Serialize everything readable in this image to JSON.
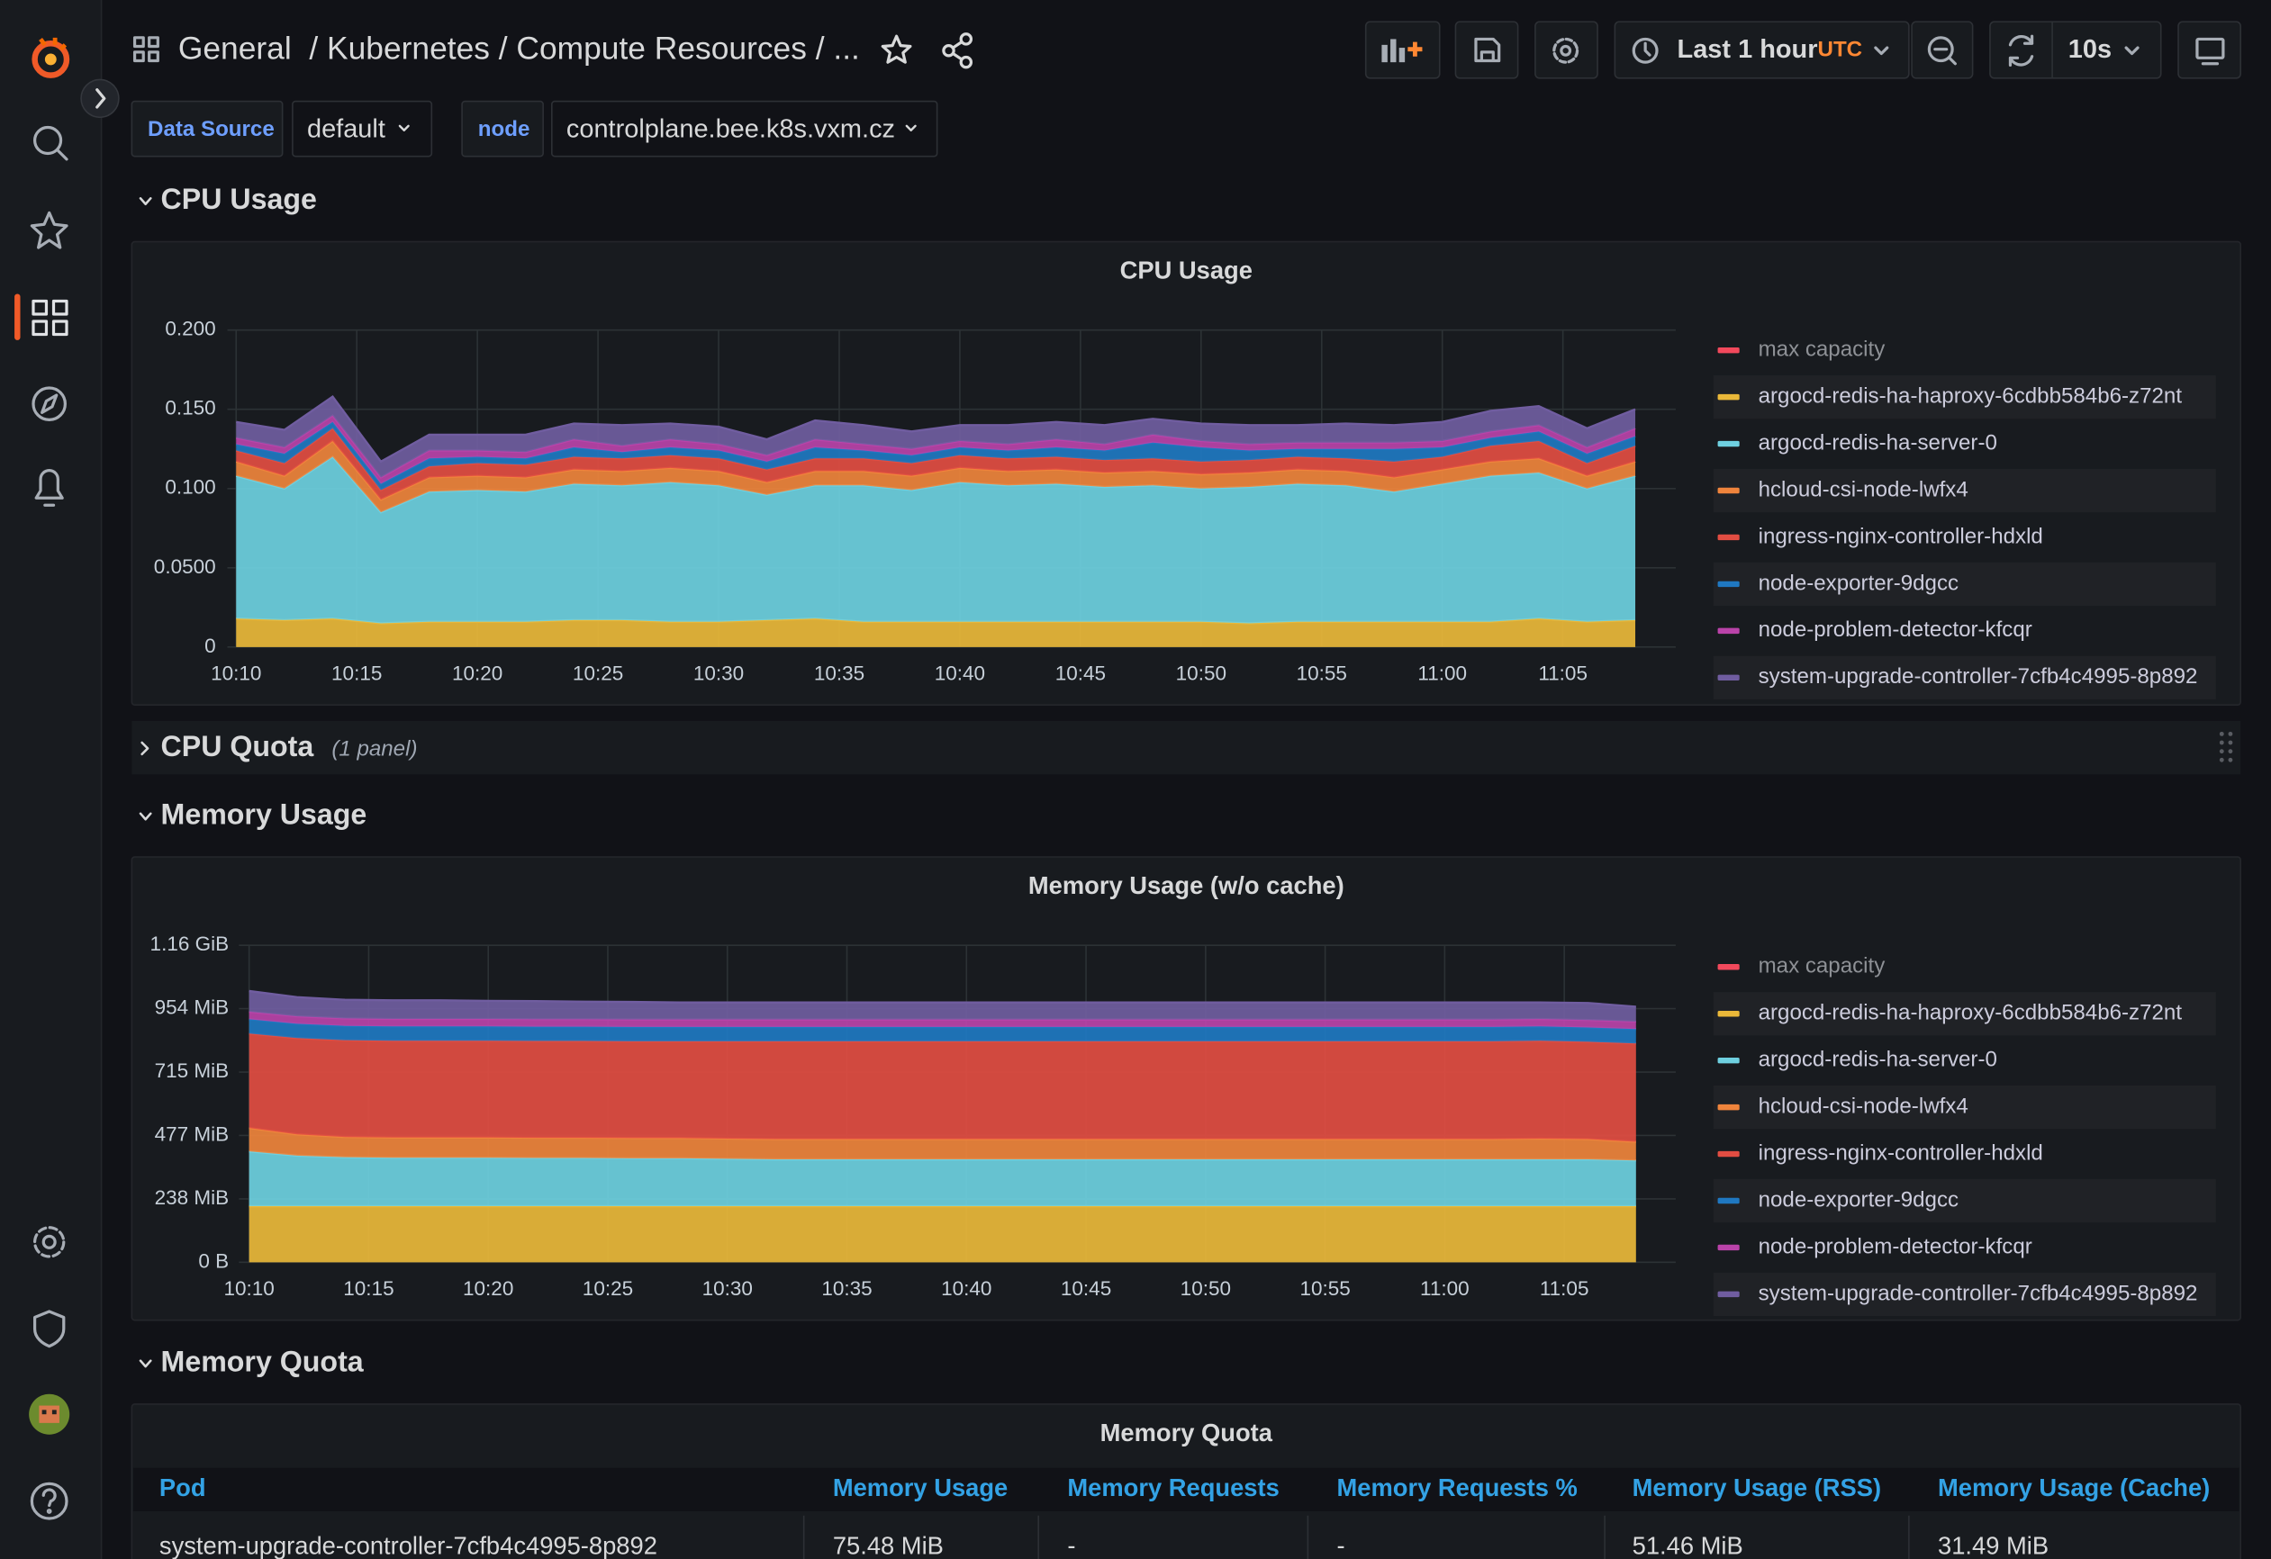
{
  "header": {
    "breadcrumb": "General  / Kubernetes / Compute Resources / ...",
    "time_range": "Last 1 hour",
    "timezone": "UTC",
    "refresh": "10s"
  },
  "variables": [
    {
      "label": "Data Source",
      "value": "default"
    },
    {
      "label": "node",
      "value": "controlplane.bee.k8s.vxm.cz"
    }
  ],
  "rows": [
    {
      "title": "CPU Usage"
    },
    {
      "title": "CPU Quota",
      "note": "(1 panel)"
    },
    {
      "title": "Memory Usage"
    },
    {
      "title": "Memory Quota"
    }
  ],
  "chart_data": [
    {
      "type": "stacked-area",
      "title": "CPU Usage",
      "x": [
        "10:10",
        "10:12",
        "10:14",
        "10:16",
        "10:18",
        "10:20",
        "10:22",
        "10:24",
        "10:26",
        "10:28",
        "10:30",
        "10:32",
        "10:34",
        "10:36",
        "10:38",
        "10:40",
        "10:42",
        "10:44",
        "10:46",
        "10:48",
        "10:50",
        "10:52",
        "10:54",
        "10:56",
        "10:58",
        "11:00",
        "11:02",
        "11:04",
        "11:06",
        "11:08"
      ],
      "xlim": [
        "10:09",
        "11:10"
      ],
      "xticks": [
        "10:10",
        "10:15",
        "10:20",
        "10:25",
        "10:30",
        "10:35",
        "10:40",
        "10:45",
        "10:50",
        "10:55",
        "11:00",
        "11:05"
      ],
      "ylim": [
        0,
        0.2
      ],
      "yticks": [
        0,
        {
          "value": 0.05,
          "label": "0.0500"
        },
        {
          "value": 0.1,
          "label": "0.100"
        },
        {
          "value": 0.15,
          "label": "0.150"
        },
        {
          "value": 0.2,
          "label": "0.200"
        }
      ],
      "grid": true,
      "legend": "right",
      "series": [
        {
          "name": "max capacity",
          "color": "#f2495c",
          "values": [
            null,
            null,
            null,
            null,
            null,
            null,
            null,
            null,
            null,
            null,
            null,
            null,
            null,
            null,
            null,
            null,
            null,
            null,
            null,
            null,
            null,
            null,
            null,
            null,
            null,
            null,
            null,
            null,
            null,
            null
          ]
        },
        {
          "name": "argocd-redis-ha-haproxy-6cdbb584b6-z72nt",
          "color": "#eab839",
          "values": [
            0.018,
            0.017,
            0.018,
            0.015,
            0.016,
            0.016,
            0.016,
            0.017,
            0.017,
            0.016,
            0.016,
            0.017,
            0.018,
            0.016,
            0.016,
            0.016,
            0.016,
            0.016,
            0.016,
            0.016,
            0.016,
            0.015,
            0.016,
            0.016,
            0.016,
            0.016,
            0.016,
            0.018,
            0.016,
            0.017
          ]
        },
        {
          "name": "argocd-redis-ha-server-0",
          "color": "#6ed0e0",
          "values": [
            0.09,
            0.083,
            0.102,
            0.07,
            0.082,
            0.083,
            0.082,
            0.086,
            0.085,
            0.088,
            0.086,
            0.079,
            0.084,
            0.086,
            0.083,
            0.088,
            0.086,
            0.087,
            0.085,
            0.086,
            0.084,
            0.086,
            0.087,
            0.086,
            0.082,
            0.087,
            0.092,
            0.092,
            0.084,
            0.091
          ]
        },
        {
          "name": "hcloud-csi-node-lwfx4",
          "color": "#ef843c",
          "values": [
            0.009,
            0.008,
            0.01,
            0.008,
            0.009,
            0.009,
            0.009,
            0.009,
            0.009,
            0.009,
            0.009,
            0.008,
            0.009,
            0.009,
            0.009,
            0.009,
            0.009,
            0.009,
            0.009,
            0.009,
            0.009,
            0.009,
            0.009,
            0.009,
            0.009,
            0.009,
            0.009,
            0.009,
            0.008,
            0.009
          ]
        },
        {
          "name": "ingress-nginx-controller-hdxld",
          "color": "#e24d42",
          "values": [
            0.007,
            0.008,
            0.008,
            0.006,
            0.007,
            0.008,
            0.008,
            0.008,
            0.008,
            0.008,
            0.008,
            0.008,
            0.008,
            0.008,
            0.008,
            0.008,
            0.008,
            0.008,
            0.008,
            0.008,
            0.008,
            0.008,
            0.008,
            0.008,
            0.01,
            0.008,
            0.01,
            0.011,
            0.008,
            0.01
          ]
        },
        {
          "name": "node-exporter-9dgcc",
          "color": "#1f78c1",
          "values": [
            0.004,
            0.006,
            0.004,
            0.004,
            0.005,
            0.004,
            0.004,
            0.006,
            0.004,
            0.005,
            0.005,
            0.005,
            0.007,
            0.005,
            0.005,
            0.005,
            0.005,
            0.006,
            0.006,
            0.01,
            0.009,
            0.006,
            0.005,
            0.006,
            0.008,
            0.006,
            0.005,
            0.006,
            0.006,
            0.006
          ]
        },
        {
          "name": "node-problem-detector-kfcqr",
          "color": "#ba43a9",
          "values": [
            0.004,
            0.004,
            0.004,
            0.004,
            0.005,
            0.004,
            0.004,
            0.005,
            0.004,
            0.005,
            0.004,
            0.004,
            0.005,
            0.004,
            0.004,
            0.004,
            0.004,
            0.005,
            0.004,
            0.005,
            0.004,
            0.004,
            0.004,
            0.004,
            0.004,
            0.004,
            0.004,
            0.004,
            0.004,
            0.005
          ]
        },
        {
          "name": "system-upgrade-controller-7cfb4c4995-8p892",
          "color": "#705da0",
          "values": [
            0.01,
            0.011,
            0.012,
            0.01,
            0.01,
            0.01,
            0.011,
            0.01,
            0.013,
            0.01,
            0.011,
            0.01,
            0.012,
            0.012,
            0.011,
            0.01,
            0.012,
            0.011,
            0.012,
            0.01,
            0.011,
            0.012,
            0.011,
            0.012,
            0.011,
            0.012,
            0.013,
            0.012,
            0.012,
            0.012
          ]
        }
      ]
    },
    {
      "type": "stacked-area",
      "title": "Memory Usage (w/o cache)",
      "x": [
        "10:10",
        "10:12",
        "10:14",
        "10:16",
        "10:18",
        "10:20",
        "10:22",
        "10:24",
        "10:26",
        "10:28",
        "10:30",
        "10:32",
        "10:34",
        "10:36",
        "10:38",
        "10:40",
        "10:42",
        "10:44",
        "10:46",
        "10:48",
        "10:50",
        "10:52",
        "10:54",
        "10:56",
        "10:58",
        "11:00",
        "11:02",
        "11:04",
        "11:06",
        "11:08"
      ],
      "xlim": [
        "10:09",
        "11:10"
      ],
      "xticks": [
        "10:10",
        "10:15",
        "10:20",
        "10:25",
        "10:30",
        "10:35",
        "10:40",
        "10:45",
        "10:50",
        "10:55",
        "11:00",
        "11:05"
      ],
      "ylim": [
        0,
        1192.1
      ],
      "yticks": [
        {
          "value": 0,
          "label": "0 B"
        },
        {
          "value": 238.4,
          "label": "238 MiB"
        },
        {
          "value": 476.8,
          "label": "477 MiB"
        },
        {
          "value": 715.3,
          "label": "715 MiB"
        },
        {
          "value": 953.7,
          "label": "954 MiB"
        },
        {
          "value": 1192.1,
          "label": "1.16 GiB"
        }
      ],
      "grid": true,
      "legend": "right",
      "series": [
        {
          "name": "max capacity",
          "color": "#f2495c",
          "values": [
            null,
            null,
            null,
            null,
            null,
            null,
            null,
            null,
            null,
            null,
            null,
            null,
            null,
            null,
            null,
            null,
            null,
            null,
            null,
            null,
            null,
            null,
            null,
            null,
            null,
            null,
            null,
            null,
            null,
            null
          ]
        },
        {
          "name": "argocd-redis-ha-haproxy-6cdbb584b6-z72nt",
          "color": "#eab839",
          "values": [
            211,
            211,
            211,
            211,
            211,
            211,
            211,
            211,
            211,
            211,
            211,
            211,
            211,
            211,
            211,
            211,
            211,
            211,
            211,
            211,
            211,
            211,
            211,
            211,
            211,
            211,
            211,
            211,
            211,
            211
          ]
        },
        {
          "name": "argocd-redis-ha-server-0",
          "color": "#6ed0e0",
          "values": [
            206,
            190,
            184,
            182,
            182,
            182,
            181,
            181,
            180,
            180,
            178,
            176,
            176,
            176,
            176,
            176,
            176,
            176,
            176,
            176,
            176,
            176,
            176,
            176,
            176,
            176,
            176,
            176,
            176,
            172
          ]
        },
        {
          "name": "hcloud-csi-node-lwfx4",
          "color": "#ef843c",
          "values": [
            88,
            80,
            76,
            76,
            76,
            76,
            76,
            76,
            76,
            76,
            76,
            76,
            76,
            76,
            76,
            76,
            76,
            76,
            76,
            76,
            76,
            76,
            76,
            76,
            76,
            76,
            76,
            78,
            76,
            70
          ]
        },
        {
          "name": "ingress-nginx-controller-hdxld",
          "color": "#e24d42",
          "values": [
            355,
            362,
            364,
            364,
            364,
            364,
            364,
            364,
            364,
            364,
            366,
            368,
            368,
            368,
            368,
            368,
            368,
            368,
            368,
            368,
            368,
            368,
            368,
            368,
            368,
            368,
            368,
            368,
            366,
            370
          ]
        },
        {
          "name": "node-exporter-9dgcc",
          "color": "#1f78c1",
          "values": [
            54,
            54,
            54,
            54,
            54,
            54,
            54,
            54,
            54,
            54,
            54,
            54,
            54,
            54,
            54,
            54,
            54,
            54,
            54,
            54,
            54,
            54,
            54,
            54,
            54,
            54,
            54,
            54,
            54,
            54
          ]
        },
        {
          "name": "node-problem-detector-kfcqr",
          "color": "#ba43a9",
          "values": [
            28,
            28,
            28,
            28,
            28,
            28,
            28,
            28,
            28,
            28,
            28,
            28,
            28,
            28,
            28,
            28,
            28,
            28,
            28,
            28,
            28,
            28,
            28,
            28,
            28,
            28,
            28,
            28,
            28,
            28
          ]
        },
        {
          "name": "system-upgrade-controller-7cfb4c4995-8p892",
          "color": "#705da0",
          "values": [
            78,
            72,
            70,
            70,
            70,
            68,
            68,
            66,
            66,
            64,
            64,
            64,
            64,
            64,
            64,
            64,
            64,
            64,
            64,
            64,
            64,
            64,
            64,
            64,
            64,
            64,
            64,
            62,
            64,
            56
          ]
        }
      ]
    }
  ],
  "table": {
    "title": "Memory Quota",
    "columns": [
      "Pod",
      "Memory Usage",
      "Memory Requests",
      "Memory Requests %",
      "Memory Usage (RSS)",
      "Memory Usage (Cache)"
    ],
    "rows": [
      [
        "system-upgrade-controller-7cfb4c4995-8p892",
        "75.48 MiB",
        "-",
        "-",
        "51.46 MiB",
        "31.49 MiB"
      ]
    ]
  }
}
